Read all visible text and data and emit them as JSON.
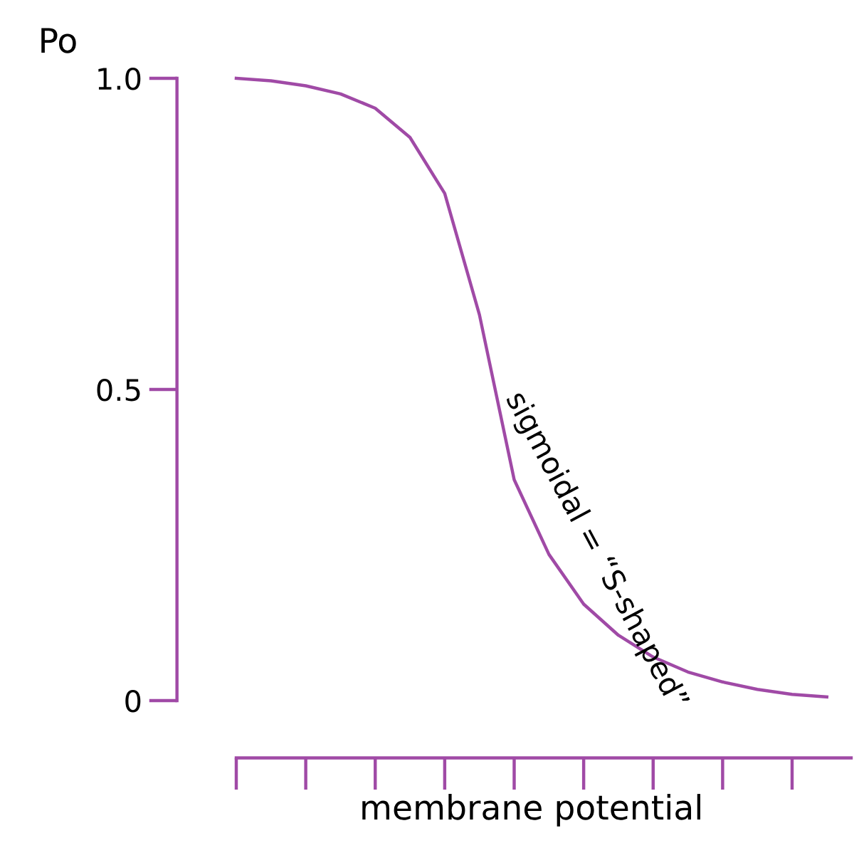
{
  "chart_data": {
    "type": "line",
    "xlabel": "membrane potential",
    "ylabel": "Po",
    "categories": [
      null,
      null,
      null,
      null,
      null,
      null,
      null,
      null,
      null,
      null,
      null,
      null,
      null,
      null,
      null,
      null,
      null,
      null
    ],
    "ylim": [
      0,
      1
    ],
    "yticks": [
      0,
      0.5,
      {
        "value": 1,
        "label": "1.0"
      }
    ],
    "grid": false,
    "marker": "none",
    "line_style": "solid",
    "series": [
      {
        "color": "#a04aa6",
        "values": [
          1.0,
          0.996,
          0.988,
          0.975,
          0.952,
          0.905,
          0.815,
          0.62,
          0.355,
          0.235,
          0.155,
          0.105,
          0.07,
          0.046,
          0.03,
          0.018,
          0.01,
          0.006
        ]
      }
    ],
    "annotations": [
      "sigmoidal = “S-shaped”"
    ]
  }
}
